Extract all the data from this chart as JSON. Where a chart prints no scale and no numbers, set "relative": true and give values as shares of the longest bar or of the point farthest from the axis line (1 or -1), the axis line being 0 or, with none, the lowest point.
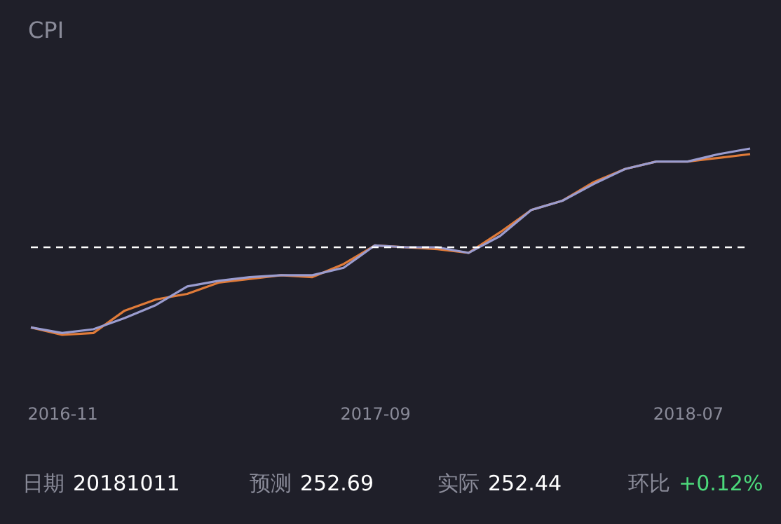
{
  "chart_data": {
    "type": "line",
    "title": "CPI",
    "relative": true,
    "categories": [
      null,
      "2016-11",
      null,
      null,
      null,
      null,
      null,
      null,
      null,
      null,
      null,
      "2017-09",
      null,
      null,
      null,
      null,
      null,
      null,
      null,
      null,
      null,
      "2018-07",
      null,
      null
    ],
    "series": [
      {
        "color": "#e07b39",
        "values": [
          0.04,
          0,
          0.01,
          0.13,
          0.19,
          0.22,
          0.28,
          0.3,
          0.32,
          0.31,
          0.38,
          0.48,
          0.47,
          0.46,
          0.44,
          0.55,
          0.67,
          0.72,
          0.82,
          0.89,
          0.93,
          0.93,
          0.95,
          0.97
        ]
      },
      {
        "color": "#9a9ccf",
        "values": [
          0.04,
          0.01,
          0.03,
          0.09,
          0.16,
          0.26,
          0.29,
          0.31,
          0.32,
          0.32,
          0.36,
          0.48,
          0.47,
          0.47,
          0.44,
          0.53,
          0.67,
          0.72,
          0.81,
          0.89,
          0.93,
          0.93,
          0.97,
          1.0
        ]
      }
    ],
    "ref_lines": [
      {
        "axis": "y",
        "value": 0.47,
        "color": "#ffffff",
        "line_style": "dashed"
      }
    ],
    "grid": false,
    "legend": false,
    "marker": "none",
    "line_style": "solid",
    "annotations": [
      "日期 20181011",
      "预测 252.69",
      "实际 252.44",
      "环比 +0.12%"
    ]
  }
}
